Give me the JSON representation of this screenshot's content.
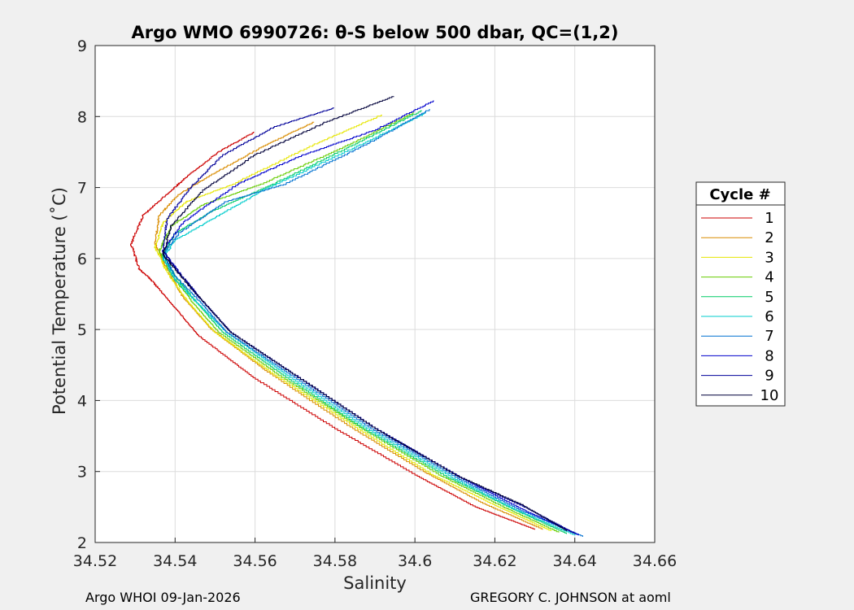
{
  "chart_data": {
    "type": "line",
    "title": "Argo WMO 6990726: θ-S below 500 dbar,  QC=(1,2)",
    "xlabel": "Salinity",
    "ylabel": "Potential Temperature (˚C)",
    "xlim": [
      34.52,
      34.66
    ],
    "ylim": [
      2,
      9
    ],
    "xticks": [
      "34.52",
      "34.54",
      "34.56",
      "34.58",
      "34.6",
      "34.62",
      "34.64",
      "34.66"
    ],
    "yticks": [
      "2",
      "3",
      "4",
      "5",
      "6",
      "7",
      "8",
      "9"
    ],
    "grid": true,
    "legend": {
      "title": "Cycle #",
      "placement": "outside-right"
    },
    "series": [
      {
        "name": "1",
        "color": "#cc0000",
        "x": [
          34.56,
          34.551,
          34.543,
          34.538,
          34.532,
          34.529,
          34.531,
          34.534,
          34.537,
          34.54,
          34.546,
          34.56,
          34.58,
          34.6,
          34.615,
          34.63
        ],
        "y": [
          7.78,
          7.5,
          7.15,
          6.9,
          6.6,
          6.2,
          5.85,
          5.7,
          5.5,
          5.3,
          4.9,
          4.3,
          3.6,
          2.95,
          2.5,
          2.18
        ]
      },
      {
        "name": "2",
        "color": "#d98c00",
        "x": [
          34.575,
          34.563,
          34.55,
          34.541,
          34.536,
          34.535,
          34.538,
          34.542,
          34.549,
          34.563,
          34.583,
          34.602,
          34.617,
          34.632
        ],
        "y": [
          7.92,
          7.6,
          7.2,
          6.9,
          6.6,
          6.2,
          5.85,
          5.45,
          5.0,
          4.4,
          3.65,
          3.0,
          2.55,
          2.18
        ]
      },
      {
        "name": "3",
        "color": "#e6e600",
        "x": [
          34.592,
          34.575,
          34.555,
          34.543,
          34.537,
          34.535,
          34.538,
          34.543,
          34.55,
          34.565,
          34.585,
          34.604,
          34.62,
          34.634
        ],
        "y": [
          8.02,
          7.6,
          7.05,
          6.8,
          6.5,
          6.15,
          5.8,
          5.4,
          4.95,
          4.35,
          3.62,
          2.96,
          2.52,
          2.16
        ]
      },
      {
        "name": "4",
        "color": "#66cc00",
        "x": [
          34.6,
          34.582,
          34.562,
          34.547,
          34.539,
          34.536,
          34.539,
          34.544,
          34.551,
          34.566,
          34.586,
          34.606,
          34.622,
          34.636
        ],
        "y": [
          8.05,
          7.55,
          7.05,
          6.75,
          6.45,
          6.1,
          5.78,
          5.4,
          4.95,
          4.35,
          3.62,
          2.95,
          2.5,
          2.14
        ]
      },
      {
        "name": "5",
        "color": "#00cc66",
        "x": [
          34.602,
          34.585,
          34.565,
          34.549,
          34.54,
          34.537,
          34.54,
          34.545,
          34.552,
          34.567,
          34.587,
          34.608,
          34.624,
          34.638
        ],
        "y": [
          8.08,
          7.6,
          7.05,
          6.65,
          6.35,
          6.05,
          5.75,
          5.4,
          4.95,
          4.35,
          3.6,
          2.92,
          2.48,
          2.12
        ]
      },
      {
        "name": "6",
        "color": "#00cccc",
        "x": [
          34.603,
          34.585,
          34.562,
          34.551,
          34.54,
          34.537,
          34.54,
          34.545,
          34.553,
          34.568,
          34.588,
          34.609,
          34.625,
          34.64
        ],
        "y": [
          8.05,
          7.55,
          6.95,
          6.6,
          6.25,
          6.0,
          5.7,
          5.4,
          4.95,
          4.35,
          3.6,
          2.92,
          2.46,
          2.1
        ]
      },
      {
        "name": "7",
        "color": "#0070d0",
        "x": [
          34.604,
          34.588,
          34.568,
          34.553,
          34.541,
          34.537,
          34.54,
          34.546,
          34.553,
          34.569,
          34.589,
          34.61,
          34.626,
          34.642
        ],
        "y": [
          8.1,
          7.6,
          7.05,
          6.8,
          6.35,
          6.05,
          5.75,
          5.4,
          4.95,
          4.35,
          3.6,
          2.92,
          2.46,
          2.08
        ]
      },
      {
        "name": "8",
        "color": "#0000cc",
        "x": [
          34.605,
          34.59,
          34.572,
          34.556,
          34.542,
          34.537,
          34.541,
          34.546,
          34.554,
          34.57,
          34.59,
          34.611,
          34.627,
          34.641
        ],
        "y": [
          8.22,
          7.8,
          7.45,
          7.05,
          6.5,
          6.1,
          5.8,
          5.45,
          4.95,
          4.35,
          3.6,
          2.92,
          2.46,
          2.1
        ]
      },
      {
        "name": "9",
        "color": "#000099",
        "x": [
          34.58,
          34.565,
          34.552,
          34.544,
          34.538,
          34.537,
          34.541,
          34.546,
          34.554,
          34.57,
          34.59,
          34.611,
          34.628,
          34.64
        ],
        "y": [
          8.12,
          7.85,
          7.45,
          7.0,
          6.55,
          6.1,
          5.8,
          5.45,
          4.95,
          4.35,
          3.6,
          2.92,
          2.48,
          2.12
        ]
      },
      {
        "name": "10",
        "color": "#00003a",
        "x": [
          34.595,
          34.578,
          34.56,
          34.547,
          34.539,
          34.537,
          34.541,
          34.546,
          34.554,
          34.57,
          34.59,
          34.61,
          34.627,
          34.638
        ],
        "y": [
          8.28,
          7.92,
          7.45,
          6.95,
          6.45,
          6.05,
          5.78,
          5.45,
          4.95,
          4.35,
          3.6,
          2.95,
          2.52,
          2.16
        ]
      }
    ]
  },
  "footer": {
    "left": "Argo WHOI 09-Jan-2026",
    "right": "GREGORY C. JOHNSON at aoml"
  }
}
